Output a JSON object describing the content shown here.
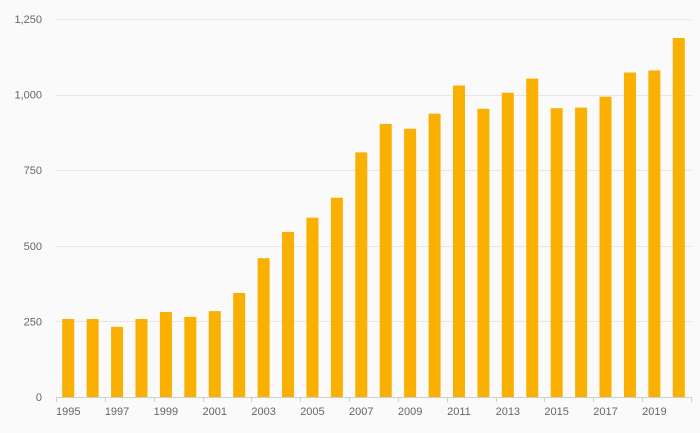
{
  "chart_data": {
    "type": "bar",
    "title": "",
    "xlabel": "",
    "ylabel": "",
    "categories": [
      "1995",
      "1996",
      "1997",
      "1998",
      "1999",
      "2000",
      "2001",
      "2002",
      "2003",
      "2004",
      "2005",
      "2006",
      "2007",
      "2008",
      "2009",
      "2010",
      "2011",
      "2012",
      "2013",
      "2014",
      "2015",
      "2016",
      "2017",
      "2018",
      "2019",
      "2020"
    ],
    "x_tick_labels": [
      "1995",
      "1997",
      "1999",
      "2001",
      "2003",
      "2005",
      "2007",
      "2009",
      "2011",
      "2013",
      "2015",
      "2017",
      "2019"
    ],
    "values": [
      258,
      258,
      232,
      258,
      281,
      265,
      284,
      344,
      459,
      546,
      593,
      659,
      809,
      903,
      887,
      937,
      1030,
      953,
      1006,
      1053,
      955,
      957,
      993,
      1073,
      1080,
      1187
    ],
    "ylim": [
      0,
      1250
    ],
    "y_ticks": [
      0,
      250,
      500,
      750,
      1000,
      1250
    ],
    "y_tick_labels": [
      "0",
      "250",
      "500",
      "750",
      "1,000",
      "1,250"
    ],
    "grid": true,
    "legend": "none",
    "colors": {
      "bar": "#f9b000",
      "grid": "#e6e6e6",
      "axis": "#cfcfcf",
      "text": "#666666",
      "background": "#fafafa"
    }
  }
}
